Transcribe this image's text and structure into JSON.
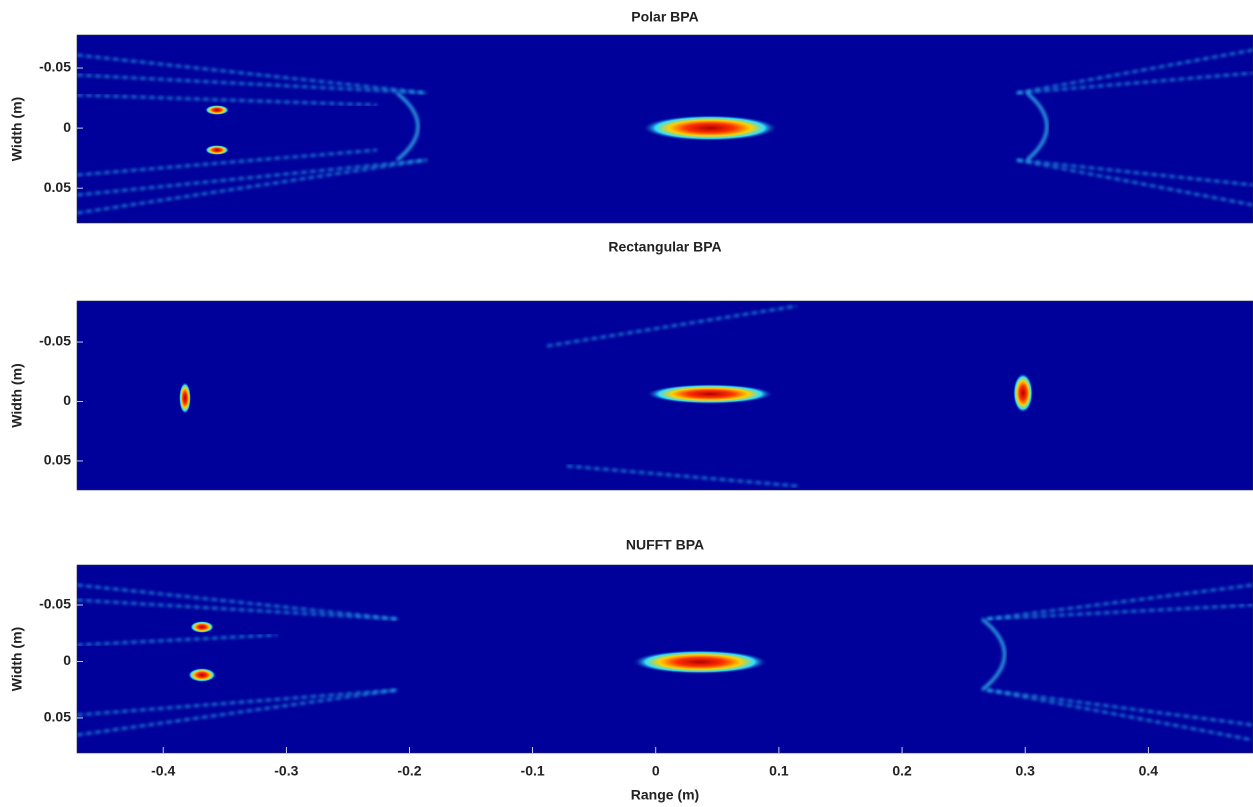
{
  "chart_data": [
    {
      "type": "heatmap",
      "title": "Polar BPA",
      "ylabel": "Width (m)",
      "xlim": [
        -0.47,
        0.485
      ],
      "ylim": [
        -0.0775,
        0.079
      ],
      "yticks": [
        -0.05,
        0,
        0.05
      ],
      "colormap": "jet"
    },
    {
      "type": "heatmap",
      "title": "Rectangular BPA",
      "ylabel": "Width (m)",
      "xlim": [
        -0.47,
        0.485
      ],
      "ylim": [
        -0.0845,
        0.0744
      ],
      "yticks": [
        -0.05,
        0,
        0.05
      ],
      "colormap": "jet"
    },
    {
      "type": "heatmap",
      "title": "NUFFT BPA",
      "ylabel": "Width (m)",
      "xlabel": "Range (m)",
      "xlim": [
        -0.47,
        0.485
      ],
      "ylim": [
        -0.0854,
        0.081
      ],
      "yticks": [
        -0.05,
        0,
        0.05
      ],
      "xticks": [
        -0.4,
        -0.3,
        -0.2,
        -0.1,
        0,
        0.1,
        0.2,
        0.3,
        0.4
      ],
      "colormap": "jet"
    }
  ]
}
